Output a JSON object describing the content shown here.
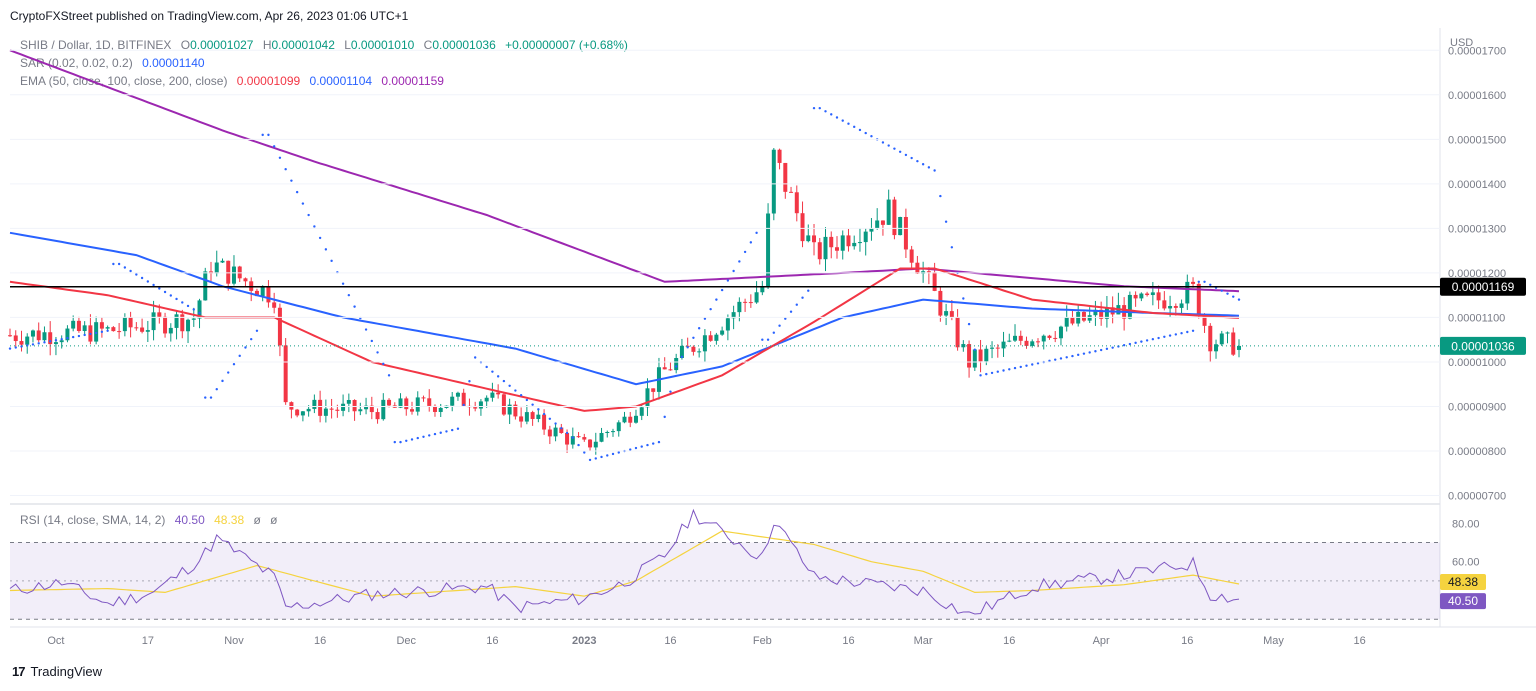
{
  "publisher": "CryptoFXStreet published on TradingView.com, Apr 26, 2023 01:06 UTC+1",
  "symbol": "SHIB / Dollar, 1D, BITFINEX",
  "ohlc": {
    "o_label": "O",
    "o": "0.00001027",
    "h_label": "H",
    "h": "0.00001042",
    "l_label": "L",
    "l": "0.00001010",
    "c_label": "C",
    "c": "0.00001036",
    "change": "+0.00000007 (+0.68%)"
  },
  "sar": {
    "label": "SAR (0.02, 0.02, 0.2)",
    "value": "0.00001140"
  },
  "ema": {
    "label": "EMA (50, close, 100, close, 200, close)",
    "v50": "0.00001099",
    "v100": "0.00001104",
    "v200": "0.00001159"
  },
  "rsi_header": {
    "label": "RSI (14, close, SMA, 14, 2)",
    "rsi": "40.50",
    "sma": "48.38",
    "extra1": "ø",
    "extra2": "ø"
  },
  "currency": "USD",
  "price_ticks": [
    "0.00001700",
    "0.00001600",
    "0.00001500",
    "0.00001400",
    "0.00001300",
    "0.00001200",
    "0.00001100",
    "0.00001000",
    "0.00000900",
    "0.00000800",
    "0.00000700"
  ],
  "rsi_ticks": [
    "80.00",
    "60.00"
  ],
  "time_ticks": [
    "Oct",
    "17",
    "Nov",
    "16",
    "Dec",
    "16",
    "2023",
    "16",
    "Feb",
    "16",
    "Mar",
    "16",
    "Apr",
    "16",
    "May",
    "16"
  ],
  "hline_label": "0.00001169",
  "last_label": "0.00001036",
  "rsi_sma_label": "48.38",
  "rsi_label": "40.50",
  "brand": "TradingView",
  "colors": {
    "up": "#089981",
    "down": "#f23645",
    "ema50": "#f23645",
    "ema100": "#2962ff",
    "ema200": "#9c27b0",
    "sar": "#2962ff",
    "rsi": "#7e57c2",
    "rsi_sma": "#f5d33f"
  },
  "chart_data": [
    {
      "type": "candlestick",
      "title": "SHIB / Dollar, 1D, BITFINEX",
      "ylabel": "USD",
      "ylim": [
        6.9e-06,
        1.75e-05
      ],
      "x_range": [
        "2022-09-23",
        "2023-05-30"
      ],
      "horizontal_line": 1.169e-05,
      "anchors": {
        "dates": [
          "2022-09-23",
          "2022-10-10",
          "2022-10-25",
          "2022-10-28",
          "2022-11-08",
          "2022-11-10",
          "2022-11-25",
          "2022-12-15",
          "2023-01-01",
          "2023-01-08",
          "2023-01-15",
          "2023-02-01",
          "2023-02-03",
          "2023-02-10",
          "2023-02-23",
          "2023-03-01",
          "2023-03-09",
          "2023-03-20",
          "2023-04-05",
          "2023-04-17",
          "2023-04-20",
          "2023-04-25"
        ],
        "close": [
          1.06e-05,
          1.07e-05,
          1.1e-05,
          1.22e-05,
          1.15e-05,
          9e-06,
          8.9e-06,
          9.2e-06,
          8.1e-06,
          8.7e-06,
          9.8e-06,
          1.17e-05,
          1.46e-05,
          1.24e-05,
          1.34e-05,
          1.2e-05,
          1e-05,
          1.06e-05,
          1.12e-05,
          1.16e-05,
          1.05e-05,
          1.036e-05
        ]
      },
      "ema50": {
        "dates": [
          "2022-09-23",
          "2022-10-10",
          "2022-10-27",
          "2022-11-08",
          "2022-11-25",
          "2022-12-15",
          "2023-01-01",
          "2023-01-10",
          "2023-01-25",
          "2023-02-10",
          "2023-02-25",
          "2023-03-03",
          "2023-03-20",
          "2023-04-10",
          "2023-04-25"
        ],
        "values": [
          1.18e-05,
          1.15e-05,
          1.1e-05,
          1.1e-05,
          1e-05,
          9.4e-06,
          8.9e-06,
          9e-06,
          9.7e-06,
          1.09e-05,
          1.21e-05,
          1.21e-05,
          1.14e-05,
          1.11e-05,
          1.099e-05
        ]
      },
      "ema100": {
        "dates": [
          "2022-09-23",
          "2022-10-15",
          "2022-10-30",
          "2022-11-20",
          "2022-12-20",
          "2023-01-10",
          "2023-01-25",
          "2023-02-15",
          "2023-03-01",
          "2023-03-20",
          "2023-04-10",
          "2023-04-25"
        ],
        "values": [
          1.29e-05,
          1.24e-05,
          1.17e-05,
          1.1e-05,
          1.03e-05,
          9.5e-06,
          9.9e-06,
          1.1e-05,
          1.14e-05,
          1.12e-05,
          1.11e-05,
          1.104e-05
        ]
      },
      "ema200": {
        "dates": [
          "2022-09-23",
          "2022-10-30",
          "2022-11-15",
          "2022-12-15",
          "2023-01-15",
          "2023-02-15",
          "2023-03-01",
          "2023-04-05",
          "2023-04-25"
        ],
        "values": [
          1.7e-05,
          1.52e-05,
          1.45e-05,
          1.33e-05,
          1.18e-05,
          1.2e-05,
          1.21e-05,
          1.17e-05,
          1.159e-05
        ]
      },
      "sar": {
        "dates": [
          "2022-09-23",
          "2022-10-10",
          "2022-10-12",
          "2022-10-26",
          "2022-10-28",
          "2022-11-05",
          "2022-11-07",
          "2022-11-28",
          "2022-11-30",
          "2022-12-10",
          "2022-12-13",
          "2022-12-30",
          "2023-01-02",
          "2023-01-14",
          "2023-01-17",
          "2023-01-31",
          "2023-02-02",
          "2023-02-09",
          "2023-02-11",
          "2023-03-03",
          "2023-03-11",
          "2023-04-17",
          "2023-04-19",
          "2023-04-25"
        ],
        "values": [
          1.03e-05,
          1.07e-05,
          1.22e-05,
          1.11e-05,
          9.2e-06,
          1.07e-05,
          1.51e-05,
          9.7e-06,
          8.2e-06,
          8.5e-06,
          1.01e-05,
          8.3e-06,
          7.8e-06,
          8.2e-06,
          9.9e-06,
          1.29e-05,
          1.05e-05,
          1.16e-05,
          1.57e-05,
          1.43e-05,
          9.7e-06,
          1.07e-05,
          1.18e-05,
          1.14e-05
        ]
      }
    },
    {
      "type": "line",
      "title": "RSI (14, close, SMA, 14, 2)",
      "ylim": [
        27,
        88
      ],
      "bands": {
        "upper": 70,
        "middle": 50,
        "lower": 30
      },
      "series": [
        {
          "name": "RSI",
          "dates": [
            "2022-09-23",
            "2022-10-02",
            "2022-10-10",
            "2022-10-18",
            "2022-10-26",
            "2022-10-29",
            "2022-11-08",
            "2022-11-10",
            "2022-11-25",
            "2022-12-15",
            "2022-12-20",
            "2023-01-01",
            "2023-01-08",
            "2023-01-15",
            "2023-01-20",
            "2023-02-01",
            "2023-02-03",
            "2023-02-10",
            "2023-03-01",
            "2023-03-09",
            "2023-03-20",
            "2023-04-05",
            "2023-04-17",
            "2023-04-20",
            "2023-04-25"
          ],
          "values": [
            45,
            49,
            38,
            44,
            61,
            72,
            52,
            36,
            43,
            47,
            36,
            41,
            49,
            63,
            85,
            62,
            82,
            52,
            45,
            32,
            47,
            53,
            59,
            43,
            40.5
          ]
        },
        {
          "name": "SMA",
          "dates": [
            "2022-09-23",
            "2022-10-10",
            "2022-10-20",
            "2022-11-05",
            "2022-11-25",
            "2022-12-20",
            "2023-01-01",
            "2023-01-10",
            "2023-01-25",
            "2023-02-10",
            "2023-02-20",
            "2023-03-01",
            "2023-03-10",
            "2023-03-20",
            "2023-04-05",
            "2023-04-17",
            "2023-04-25"
          ],
          "values": [
            45,
            46,
            44,
            58,
            42,
            47,
            42,
            50,
            76,
            69,
            60,
            55,
            44,
            45,
            48,
            53,
            48.38
          ]
        }
      ]
    }
  ]
}
